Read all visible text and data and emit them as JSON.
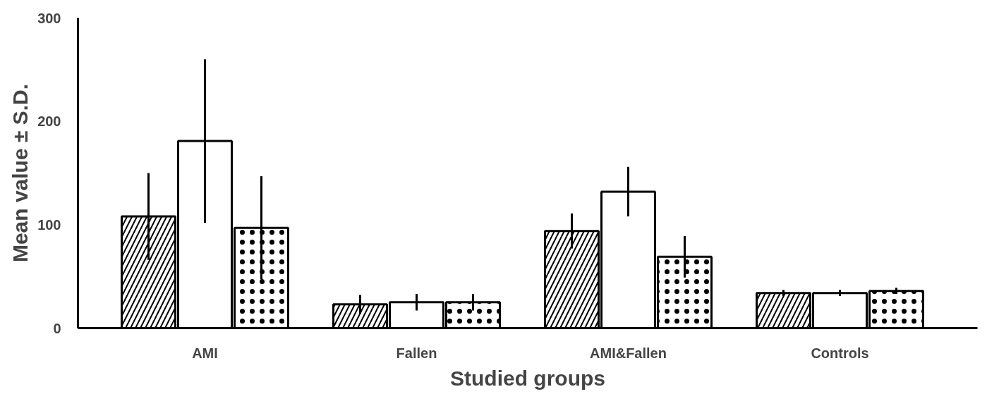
{
  "chart_data": {
    "type": "bar",
    "xlabel": "Studied groups",
    "ylabel": "Mean value ± S.D.",
    "categories": [
      "AMI",
      "Fallen",
      "AMI&Fallen",
      "Controls"
    ],
    "series": [
      {
        "color": "#000000",
        "values": [
          108,
          23,
          94,
          34
        ],
        "errors": [
          42,
          9,
          17,
          3
        ]
      },
      {
        "color": "#000000",
        "values": [
          181,
          25,
          132,
          34
        ],
        "errors": [
          79,
          8,
          24,
          3
        ]
      },
      {
        "color": "#000000",
        "values": [
          97,
          25,
          69,
          36
        ],
        "errors": [
          50,
          8,
          20,
          3
        ]
      }
    ],
    "ylim": [
      0,
      300
    ],
    "yticks": [
      0,
      100,
      200,
      300
    ],
    "grid": false
  }
}
